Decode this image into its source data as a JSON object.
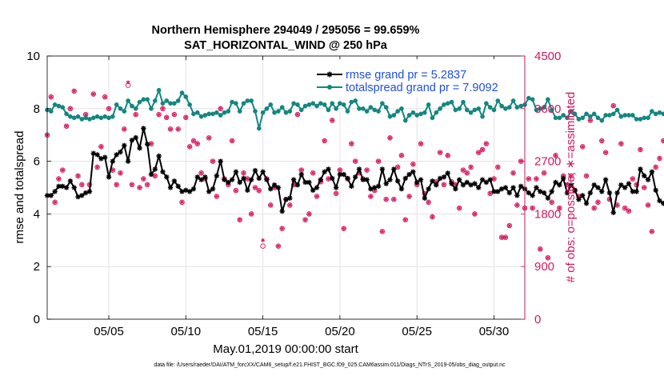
{
  "chart_data": {
    "type": "line",
    "title": "Northern Hemisphere 294049 / 295056 = 99.659%",
    "subtitle": "SAT_HORIZONTAL_WIND @ 250 hPa",
    "xlabel": "May.01,2019 00:00:00 start",
    "ylabel_left": "rmse and totalspread",
    "ylabel_right": "# of obs: o=possible; ∗=assimilated",
    "footnote": "data file: /Users/raeder/DAI/ATM_forcXX/CAM6_setup/f.e21.FHIST_BGC.f09_025.CAM6assim.011/Diags_NTrS_2019-05/obs_diag_output.nc",
    "xlim": [
      1,
      32
    ],
    "x_ticks": [
      5,
      10,
      15,
      20,
      25,
      30
    ],
    "x_tick_labels": [
      "05/05",
      "05/10",
      "05/15",
      "05/20",
      "05/25",
      "05/30"
    ],
    "ylim_left": [
      0,
      10
    ],
    "y_ticks_left": [
      "0",
      "2",
      "4",
      "6",
      "8",
      "10"
    ],
    "ylim_right": [
      0,
      4500
    ],
    "y_ticks_right": [
      "0",
      "900",
      "1800",
      "2700",
      "3600",
      "4500"
    ],
    "grid": true,
    "legend_position": "top-right",
    "colors": {
      "rmse": "#000000",
      "totalspread": "#13877f",
      "obs": "#d6165e",
      "legend_text": "#1f4fe0",
      "right_axis": "#d6165e"
    },
    "series": [
      {
        "name": "rmse grand pr = 5.2837",
        "axis": "left",
        "marker": "asterisk",
        "x_start": 1.0,
        "x_step": 0.25,
        "values": [
          4.7,
          4.7,
          4.85,
          5.05,
          5.05,
          5.0,
          5.25,
          5.0,
          4.65,
          4.7,
          4.8,
          4.85,
          6.3,
          6.25,
          6.1,
          6.15,
          5.4,
          6.0,
          6.25,
          6.35,
          6.6,
          6.0,
          6.8,
          6.9,
          6.5,
          7.25,
          6.65,
          5.5,
          5.7,
          6.2,
          5.6,
          5.4,
          5.0,
          5.25,
          5.05,
          4.85,
          4.9,
          4.85,
          4.95,
          5.4,
          5.3,
          5.4,
          4.85,
          4.95,
          5.45,
          6.0,
          5.3,
          5.2,
          5.3,
          5.6,
          5.2,
          5.35,
          4.9,
          5.3,
          5.65,
          5.35,
          5.6,
          5.3,
          4.95,
          5.1,
          5.0,
          4.1,
          4.55,
          4.6,
          5.3,
          5.1,
          5.5,
          5.2,
          5.2,
          4.9,
          5.0,
          5.3,
          5.6,
          5.7,
          5.35,
          5.0,
          5.5,
          5.5,
          5.35,
          5.05,
          5.4,
          5.7,
          5.3,
          5.3,
          4.95,
          5.0,
          5.05,
          5.7,
          5.15,
          5.3,
          5.7,
          5.25,
          4.95,
          5.35,
          5.5,
          5.6,
          5.2,
          5.3,
          4.6,
          4.95,
          5.25,
          5.1,
          5.35,
          5.4,
          5.55,
          5.15,
          4.95,
          5.3,
          5.1,
          5.2,
          5.1,
          5.15,
          5.0,
          5.3,
          5.2,
          5.3,
          4.85,
          4.85,
          4.95,
          5.0,
          4.8,
          5.0,
          4.7,
          5.05,
          4.95,
          4.8,
          4.7,
          5.0,
          4.85,
          4.8,
          4.6,
          4.85,
          5.2,
          5.1,
          5.35,
          4.8,
          5.1,
          4.9,
          4.55,
          4.7,
          4.4,
          4.8,
          5.1,
          5.0,
          4.85,
          5.3,
          4.8,
          4.05,
          4.8,
          5.1,
          5.0,
          5.15,
          4.85,
          4.85,
          5.7,
          5.45,
          5.3,
          5.6,
          4.9,
          4.5,
          4.4,
          4.4,
          4.5,
          4.35,
          4.5,
          4.3,
          4.3
        ]
      },
      {
        "name": "totalspread grand pr = 7.9092",
        "axis": "left",
        "marker": "circle",
        "x_start": 1.0,
        "x_step": 0.25,
        "values": [
          7.95,
          7.9,
          8.15,
          8.1,
          8.05,
          7.8,
          7.7,
          7.65,
          7.7,
          7.6,
          7.65,
          7.6,
          7.65,
          7.7,
          7.65,
          7.7,
          7.65,
          7.7,
          8.15,
          8.0,
          7.9,
          8.3,
          8.1,
          8.0,
          8.25,
          8.35,
          8.35,
          8.0,
          8.3,
          8.7,
          8.2,
          8.3,
          8.2,
          8.2,
          8.3,
          8.6,
          8.45,
          8.15,
          7.8,
          7.85,
          7.7,
          7.75,
          7.8,
          7.8,
          7.85,
          7.75,
          7.85,
          7.9,
          8.25,
          8.2,
          7.9,
          8.2,
          8.3,
          8.3,
          7.9,
          7.25,
          7.85,
          8.0,
          8.15,
          7.85,
          7.9,
          8.05,
          7.85,
          7.9,
          8.2,
          8.15,
          7.95,
          8.1,
          8.15,
          8.2,
          8.1,
          8.2,
          8.15,
          7.95,
          8.2,
          8.0,
          8.2,
          8.15,
          7.9,
          8.25,
          8.3,
          8.0,
          8.0,
          7.9,
          8.05,
          7.95,
          7.9,
          8.2,
          8.05,
          7.7,
          7.75,
          7.9,
          8.0,
          7.55,
          7.75,
          7.85,
          7.75,
          7.8,
          7.85,
          8.15,
          7.65,
          7.85,
          8.0,
          8.15,
          8.2,
          8.25,
          7.95,
          8.0,
          8.25,
          7.95,
          7.85,
          7.95,
          8.0,
          7.7,
          8.2,
          8.05,
          7.95,
          8.3,
          8.1,
          8.0,
          8.05,
          8.3,
          8.05,
          8.1,
          8.15,
          8.4,
          8.35,
          7.95,
          8.0,
          8.05,
          8.35,
          7.95,
          7.65,
          7.65,
          7.75,
          7.65,
          7.9,
          7.8,
          7.6,
          7.65,
          7.8,
          7.7,
          7.8,
          7.65,
          7.55,
          7.75,
          7.75,
          7.8,
          7.95,
          7.7,
          7.75,
          7.75,
          7.75,
          7.6,
          7.6,
          7.65,
          7.65,
          7.9,
          7.8,
          7.85,
          7.8,
          7.85,
          7.85,
          7.7,
          7.45
        ]
      },
      {
        "name": "obs possible",
        "axis": "right",
        "marker": "o",
        "x_start": 1.0,
        "x_step": 0.25,
        "values": [
          3150,
          3800,
          2000,
          2400,
          2550,
          3300,
          3600,
          3900,
          2450,
          2300,
          3500,
          2300,
          3850,
          2600,
          2950,
          3800,
          3600,
          2550,
          2300,
          2500,
          3250,
          4000,
          2300,
          3500,
          2250,
          2400,
          2300,
          3000,
          2450,
          3500,
          3600,
          3450,
          3250,
          3500,
          3250,
          2000,
          3450,
          2950,
          3050,
          3000,
          2500,
          2400,
          3100,
          2700,
          2100,
          3600,
          2400,
          2300,
          3050,
          2200,
          1700,
          2500,
          2400,
          1800,
          2250,
          2200,
          1250,
          2400,
          1950,
          2250,
          1250,
          1550,
          2050,
          1950,
          2300,
          3500,
          2550,
          1700,
          1800,
          2500,
          2100,
          2350,
          3050,
          2400,
          3400,
          2150,
          2550,
          1550,
          2400,
          3000,
          2700,
          2500,
          2400,
          2550,
          2100,
          2200,
          2700,
          1500,
          2050,
          3100,
          2050,
          2600,
          2800,
          1700,
          2100,
          2650,
          2300,
          3000,
          2150,
          2000,
          1750,
          2350,
          2850,
          2300,
          2800,
          2350,
          2300,
          1900,
          2550,
          2500,
          2600,
          1800,
          2850,
          2900,
          3000,
          2150,
          2400,
          2600,
          1400,
          1400,
          1600,
          2500,
          1950,
          2700,
          1900,
          2400,
          1900,
          2400,
          1200,
          2500,
          1050,
          2000,
          2800,
          1900,
          2450,
          2300,
          2450,
          2200,
          2100,
          2950,
          2450,
          3400,
          1900,
          2000,
          3050,
          2850,
          2050,
          3650,
          1950,
          3000,
          1900,
          1850,
          2400,
          2300,
          2900,
          2250,
          1950,
          1500,
          2600,
          2750,
          3050,
          1150,
          2200,
          2250,
          2900,
          3150,
          2800,
          1500,
          2800,
          2150,
          1900,
          0
        ]
      },
      {
        "name": "obs assimilated",
        "axis": "right",
        "marker": "asterisk",
        "x_start": 1.0,
        "x_step": 0.25,
        "values": [
          3150,
          3800,
          2000,
          2400,
          2550,
          3300,
          3600,
          3900,
          2450,
          2300,
          3500,
          2300,
          3850,
          2600,
          2950,
          3800,
          3600,
          2550,
          2300,
          2500,
          3250,
          4050,
          2300,
          3500,
          2250,
          2400,
          2300,
          3000,
          2450,
          3500,
          3600,
          3450,
          3250,
          3500,
          3250,
          2000,
          3450,
          2950,
          3050,
          3000,
          2500,
          2400,
          3100,
          2700,
          2100,
          3600,
          2400,
          2300,
          3050,
          2200,
          1700,
          2500,
          2400,
          1800,
          2250,
          2200,
          1350,
          2400,
          1950,
          2250,
          1250,
          1550,
          2050,
          1950,
          2300,
          3500,
          2550,
          1700,
          1800,
          2500,
          2100,
          2350,
          3050,
          2400,
          3400,
          2150,
          2550,
          1550,
          2400,
          3000,
          2700,
          2500,
          2400,
          2550,
          2100,
          2200,
          2700,
          1500,
          2050,
          3100,
          2050,
          2600,
          2800,
          1700,
          2100,
          2650,
          2300,
          3000,
          2150,
          2000,
          1750,
          2350,
          2850,
          2300,
          2800,
          2350,
          2300,
          1900,
          2550,
          2500,
          2600,
          1800,
          2850,
          2900,
          3000,
          2150,
          2400,
          2600,
          1400,
          1400,
          1600,
          2500,
          1950,
          2700,
          1900,
          2400,
          1900,
          2400,
          1200,
          2500,
          1050,
          2000,
          2800,
          1900,
          2450,
          2300,
          2450,
          2200,
          2100,
          2950,
          2450,
          3400,
          1900,
          2000,
          3050,
          2850,
          2050,
          3650,
          1950,
          3000,
          1900,
          1850,
          2400,
          2300,
          2900,
          2250,
          1950,
          1500,
          2600,
          2750,
          3050,
          1500,
          2200,
          2250,
          2900,
          3100,
          2800,
          1500,
          2800,
          2150,
          1900,
          0
        ]
      }
    ]
  }
}
